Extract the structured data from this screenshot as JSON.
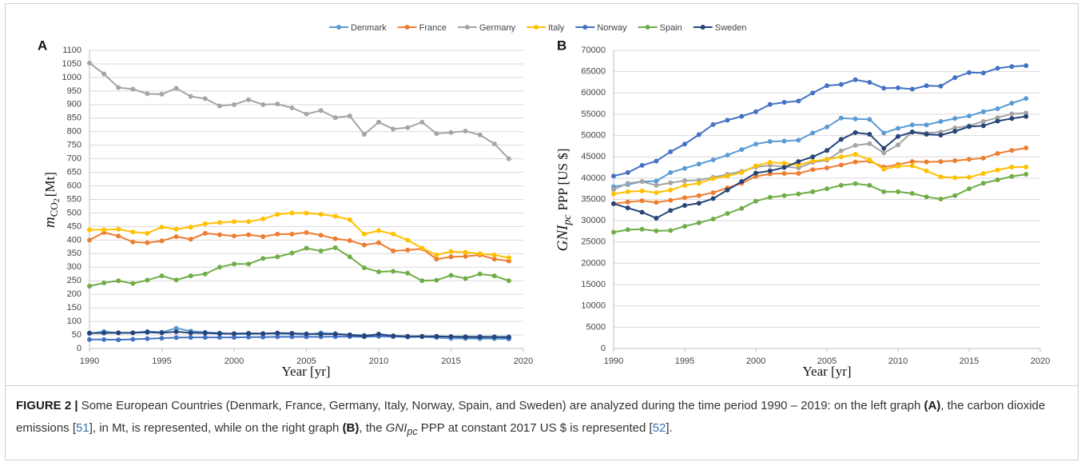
{
  "chart_data": [
    {
      "type": "line",
      "panel": "A",
      "x_label": "Year [yr]",
      "y_label": {
        "symbol": "m",
        "subscript": "CO",
        "subscript2": "2",
        "unit": "[Mt]"
      },
      "x": [
        1990,
        1991,
        1992,
        1993,
        1994,
        1995,
        1996,
        1997,
        1998,
        1999,
        2000,
        2001,
        2002,
        2003,
        2004,
        2005,
        2006,
        2007,
        2008,
        2009,
        2010,
        2011,
        2012,
        2013,
        2014,
        2015,
        2016,
        2017,
        2018,
        2019
      ],
      "xlim": [
        1990,
        2020
      ],
      "xticks": [
        1990,
        1995,
        2000,
        2005,
        2010,
        2015,
        2020
      ],
      "ylim": [
        0,
        1100
      ],
      "yticks": [
        0,
        50,
        100,
        150,
        200,
        250,
        300,
        350,
        400,
        450,
        500,
        550,
        600,
        650,
        700,
        750,
        800,
        850,
        900,
        950,
        1000,
        1050,
        1100
      ],
      "grid": true,
      "series": [
        {
          "name": "Denmark",
          "color": "#5b9bd5",
          "values": [
            55,
            63,
            57,
            58,
            63,
            60,
            75,
            64,
            60,
            57,
            53,
            54,
            55,
            55,
            54,
            51,
            58,
            55,
            51,
            49,
            50,
            46,
            42,
            43,
            40,
            37,
            37,
            36,
            36,
            35
          ]
        },
        {
          "name": "France",
          "color": "#ed7d31",
          "values": [
            400,
            428,
            415,
            393,
            390,
            397,
            413,
            403,
            425,
            420,
            415,
            420,
            413,
            422,
            422,
            428,
            418,
            405,
            398,
            382,
            390,
            360,
            363,
            368,
            330,
            338,
            340,
            345,
            330,
            323
          ]
        },
        {
          "name": "Germany",
          "color": "#a5a5a5",
          "values": [
            1053,
            1013,
            963,
            957,
            940,
            938,
            960,
            930,
            922,
            895,
            900,
            918,
            900,
            902,
            888,
            865,
            878,
            852,
            858,
            790,
            835,
            810,
            815,
            835,
            793,
            797,
            802,
            788,
            755,
            700
          ]
        },
        {
          "name": "Italy",
          "color": "#ffc000",
          "values": [
            438,
            438,
            440,
            430,
            425,
            448,
            440,
            448,
            460,
            465,
            468,
            468,
            478,
            495,
            500,
            500,
            495,
            488,
            475,
            422,
            435,
            422,
            400,
            370,
            345,
            358,
            355,
            350,
            345,
            335
          ]
        },
        {
          "name": "Norway",
          "color": "#4472c4",
          "values": [
            33,
            33,
            32,
            34,
            36,
            38,
            40,
            41,
            41,
            41,
            41,
            42,
            42,
            43,
            43,
            43,
            43,
            44,
            44,
            43,
            45,
            44,
            43,
            44,
            44,
            44,
            44,
            44,
            43,
            43
          ]
        },
        {
          "name": "Spain",
          "color": "#70ad47",
          "values": [
            230,
            242,
            250,
            240,
            252,
            268,
            253,
            268,
            275,
            300,
            312,
            312,
            332,
            338,
            352,
            370,
            360,
            372,
            338,
            298,
            283,
            285,
            278,
            250,
            252,
            270,
            258,
            275,
            268,
            250
          ]
        },
        {
          "name": "Sweden",
          "color": "#264478",
          "values": [
            57,
            57,
            58,
            58,
            60,
            58,
            62,
            58,
            57,
            55,
            55,
            56,
            55,
            57,
            56,
            54,
            53,
            53,
            50,
            46,
            53,
            47,
            45,
            45,
            45,
            44,
            42,
            42,
            42,
            41
          ]
        }
      ]
    },
    {
      "type": "line",
      "panel": "B",
      "x_label": "Year [yr]",
      "y_label": {
        "symbol": "GNI",
        "subscript": "pc",
        "unit": "PPP [US $]"
      },
      "x": [
        1990,
        1991,
        1992,
        1993,
        1994,
        1995,
        1996,
        1997,
        1998,
        1999,
        2000,
        2001,
        2002,
        2003,
        2004,
        2005,
        2006,
        2007,
        2008,
        2009,
        2010,
        2011,
        2012,
        2013,
        2014,
        2015,
        2016,
        2017,
        2018,
        2019
      ],
      "xlim": [
        1990,
        2020
      ],
      "xticks": [
        1990,
        1995,
        2000,
        2005,
        2010,
        2015,
        2020
      ],
      "ylim": [
        0,
        70000
      ],
      "yticks": [
        0,
        5000,
        10000,
        15000,
        20000,
        25000,
        30000,
        35000,
        40000,
        45000,
        50000,
        55000,
        60000,
        65000,
        70000
      ],
      "grid": true,
      "series": [
        {
          "name": "Denmark",
          "color": "#5b9bd5",
          "values": [
            38000,
            38500,
            39200,
            39300,
            41300,
            42300,
            43300,
            44300,
            45400,
            46700,
            48000,
            48600,
            48700,
            48900,
            50600,
            52000,
            54100,
            53900,
            53800,
            50600,
            51700,
            52500,
            52500,
            53300,
            54000,
            54600,
            55600,
            56300,
            57600,
            58700
          ]
        },
        {
          "name": "France",
          "color": "#ed7d31",
          "values": [
            34000,
            34400,
            34700,
            34300,
            34800,
            35400,
            35900,
            36600,
            37700,
            38800,
            40400,
            41000,
            41100,
            41100,
            42000,
            42400,
            43100,
            43800,
            44000,
            42600,
            43200,
            43900,
            43800,
            43900,
            44100,
            44400,
            44700,
            45800,
            46500,
            47100
          ]
        },
        {
          "name": "Germany",
          "color": "#a5a5a5",
          "values": [
            37300,
            38800,
            39200,
            38300,
            38900,
            39400,
            39500,
            40200,
            40900,
            41600,
            42600,
            43000,
            42700,
            42400,
            43700,
            44200,
            46400,
            47700,
            48100,
            45900,
            47800,
            50900,
            50600,
            50800,
            51800,
            52300,
            53300,
            54200,
            55100,
            55300
          ]
        },
        {
          "name": "Italy",
          "color": "#ffc000",
          "values": [
            36300,
            36800,
            37000,
            36600,
            37200,
            38300,
            38800,
            39900,
            40500,
            41300,
            42900,
            43700,
            43500,
            43100,
            44000,
            44400,
            45000,
            45600,
            44300,
            42100,
            42800,
            42900,
            41700,
            40300,
            40100,
            40200,
            41100,
            41900,
            42600,
            42600
          ]
        },
        {
          "name": "Norway",
          "color": "#4472c4",
          "values": [
            40500,
            41300,
            43000,
            44000,
            46200,
            48000,
            50200,
            52600,
            53600,
            54500,
            55600,
            57300,
            57800,
            58100,
            60000,
            61700,
            62000,
            63100,
            62500,
            61100,
            61200,
            60900,
            61700,
            61600,
            63600,
            64800,
            64700,
            65800,
            66200,
            66400
          ]
        },
        {
          "name": "Spain",
          "color": "#70ad47",
          "values": [
            27300,
            27900,
            28000,
            27600,
            27700,
            28700,
            29500,
            30400,
            31700,
            32900,
            34600,
            35500,
            35900,
            36300,
            36800,
            37500,
            38300,
            38700,
            38300,
            36800,
            36800,
            36400,
            35600,
            35100,
            35900,
            37500,
            38800,
            39600,
            40400,
            40900
          ]
        },
        {
          "name": "Sweden",
          "color": "#264478",
          "values": [
            34000,
            33000,
            32000,
            30600,
            32400,
            33600,
            34100,
            35200,
            37200,
            39200,
            41200,
            41700,
            42500,
            43900,
            45000,
            46500,
            49100,
            50700,
            50300,
            47000,
            49800,
            50800,
            50300,
            50100,
            51000,
            52100,
            52300,
            53400,
            54000,
            54500
          ]
        }
      ]
    }
  ],
  "caption": [
    "FIGURE 2 |",
    " Some European Countries (Denmark, France, Germany, Italy, Norway, Spain, and Sweden) are analyzed during the time period 1990 – 2019: on the left graph ",
    "(A)",
    ", the carbon dioxide emissions [",
    "51",
    "], in Mt, is represented, while on the right graph ",
    "(B)",
    ", the ",
    "GNI",
    "pc",
    " PPP at constant 2017 US $ is represented [",
    "52",
    "]."
  ]
}
